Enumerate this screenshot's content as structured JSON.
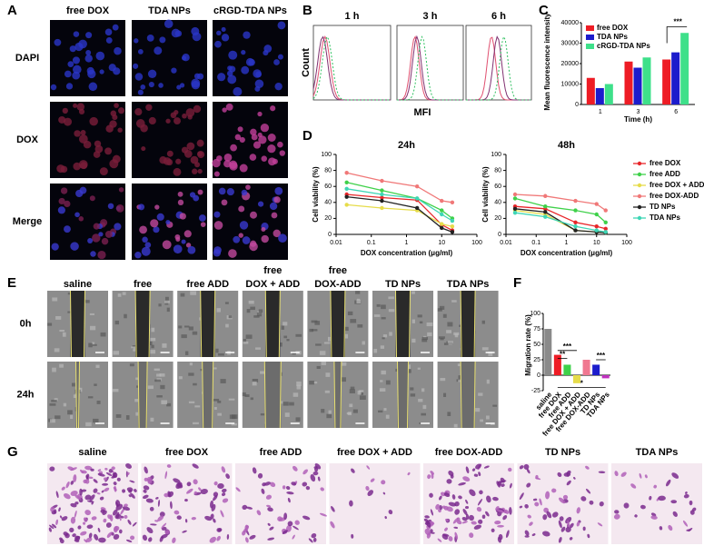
{
  "panel_labels": [
    "A",
    "B",
    "C",
    "D",
    "E",
    "F",
    "G"
  ],
  "panel_a": {
    "columns": [
      "free DOX",
      "TDA NPs",
      "cRGD-TDA  NPs"
    ],
    "rows": [
      "DAPI",
      "DOX",
      "Merge"
    ]
  },
  "panel_b": {
    "times": [
      "1 h",
      "3 h",
      "6 h"
    ],
    "ylabel": "Count",
    "xlabel": "MFI"
  },
  "panel_e": {
    "columns": [
      [
        "saline"
      ],
      [
        "free"
      ],
      [
        "free ADD"
      ],
      [
        "free",
        "DOX + ADD"
      ],
      [
        "free",
        "DOX-ADD"
      ],
      [
        "TD NPs"
      ],
      [
        "TDA NPs"
      ]
    ],
    "rows": [
      "0h",
      "24h"
    ]
  },
  "panel_g": {
    "columns": [
      "saline",
      "free DOX",
      "free ADD",
      "free DOX + ADD",
      "free DOX-ADD",
      "TD NPs",
      "TDA NPs"
    ]
  },
  "chart_data": [
    {
      "type": "bar",
      "categories": [
        "1",
        "3",
        "6"
      ],
      "xlabel": "Time (h)",
      "ylabel": "Mean fluorescence intensity",
      "ylim": [
        0,
        40000
      ],
      "yticks": [
        0,
        10000,
        20000,
        30000,
        40000
      ],
      "legend": "upper left",
      "annotations": [
        "***"
      ],
      "series": [
        {
          "name": "free DOX",
          "color": "#ee1c25",
          "values": [
            13000,
            21000,
            22000
          ]
        },
        {
          "name": "TDA NPs",
          "color": "#1c1ccc",
          "values": [
            8000,
            18000,
            25500
          ]
        },
        {
          "name": "cRGD-TDA NPs",
          "color": "#3ee08a",
          "values": [
            10000,
            23000,
            35000
          ]
        }
      ]
    },
    {
      "type": "line",
      "xscale": "log",
      "x": [
        0.02,
        0.2,
        2,
        10,
        20
      ],
      "xlim": [
        0.01,
        100
      ],
      "xticks": [
        0.01,
        0.1,
        1,
        10,
        100
      ],
      "ylim": [
        0,
        100
      ],
      "yticks": [
        0,
        20,
        40,
        60,
        80,
        100
      ],
      "xlabel": "DOX concentration (μg/ml)",
      "ylabel": "Cell viability (%)",
      "legend": "right",
      "series": [
        {
          "name": "free DOX",
          "color": "#e8262a"
        },
        {
          "name": "free ADD",
          "color": "#3fd14a"
        },
        {
          "name": "free DOX + ADD",
          "color": "#e6dc4a"
        },
        {
          "name": "free DOX-ADD",
          "color": "#f07878"
        },
        {
          "name": "TD NPs",
          "color": "#222222"
        },
        {
          "name": "TDA NPs",
          "color": "#3ed6b5"
        }
      ],
      "subplots": [
        {
          "title": "24h",
          "values": [
            [
              50,
              46,
              43,
              12,
              5
            ],
            [
              65,
              55,
              45,
              30,
              20
            ],
            [
              37,
              33,
              30,
              13,
              10
            ],
            [
              77,
              67,
              60,
              42,
              40
            ],
            [
              47,
              42,
              33,
              8,
              3
            ],
            [
              57,
              50,
              45,
              25,
              17
            ]
          ]
        },
        {
          "title": "48h",
          "values": [
            [
              35,
              32,
              15,
              10,
              7
            ],
            [
              45,
              35,
              30,
              25,
              15
            ],
            [
              30,
              25,
              5,
              3,
              2
            ],
            [
              50,
              48,
              42,
              38,
              30
            ],
            [
              32,
              28,
              5,
              3,
              2
            ],
            [
              27,
              22,
              10,
              5,
              3
            ]
          ]
        }
      ]
    },
    {
      "type": "bar",
      "categories": [
        "saline",
        "free DOX",
        "free ADD",
        "free DOX + ADD",
        "free DOX-ADD",
        "TD NPs",
        "TDA NPs"
      ],
      "values": [
        75,
        33,
        17,
        -13,
        25,
        17,
        -5
      ],
      "colors": [
        "#8a8a8a",
        "#ee1c25",
        "#3fd14a",
        "#e6dc4a",
        "#f07890",
        "#1c1ccc",
        "#c030c0"
      ],
      "ylabel": "Migration rate (%)",
      "ylim": [
        -25,
        100
      ],
      "yticks": [
        -25,
        0,
        25,
        50,
        75,
        100
      ],
      "annotations": [
        "**",
        "***",
        "***",
        "*"
      ]
    }
  ]
}
